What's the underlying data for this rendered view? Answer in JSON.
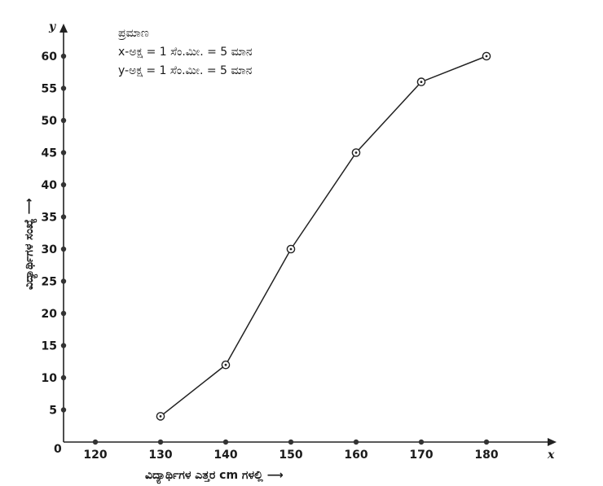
{
  "chart_data": {
    "type": "line",
    "x": [
      130,
      140,
      150,
      160,
      170,
      180
    ],
    "values": [
      4,
      12,
      30,
      45,
      56,
      60
    ],
    "xticks": [
      120,
      130,
      140,
      150,
      160,
      170,
      180
    ],
    "yticks": [
      5,
      10,
      15,
      20,
      25,
      30,
      35,
      40,
      45,
      50,
      55,
      60
    ],
    "origin_label": "0",
    "x_axis_letter": "x",
    "y_axis_letter": "y",
    "xlabel": "ವಿದ್ಯಾರ್ಥಿಗಳ ಎತ್ತರ cm ಗಳಲ್ಲಿ ⟶",
    "ylabel": "ವಿದ್ಯಾರ್ಥಿಗಳ ಸಂಖ್ಯೆ ⟶",
    "scale": {
      "title": "ಪ್ರಮಾಣ",
      "x_line": "x-ಅಕ್ಷ = 1  ಸೆಂ.ಮೀ. = 5 ಮಾನ",
      "y_line": "y-ಅಕ್ಷ = 1 ಸೆಂ.ಮೀ. = 5 ಮಾನ"
    },
    "xlim": [
      115,
      195
    ],
    "ylim": [
      0,
      64
    ],
    "marker": "open-circle",
    "grid": false,
    "colors": {
      "line": "#222222",
      "axis": "#222222"
    }
  }
}
